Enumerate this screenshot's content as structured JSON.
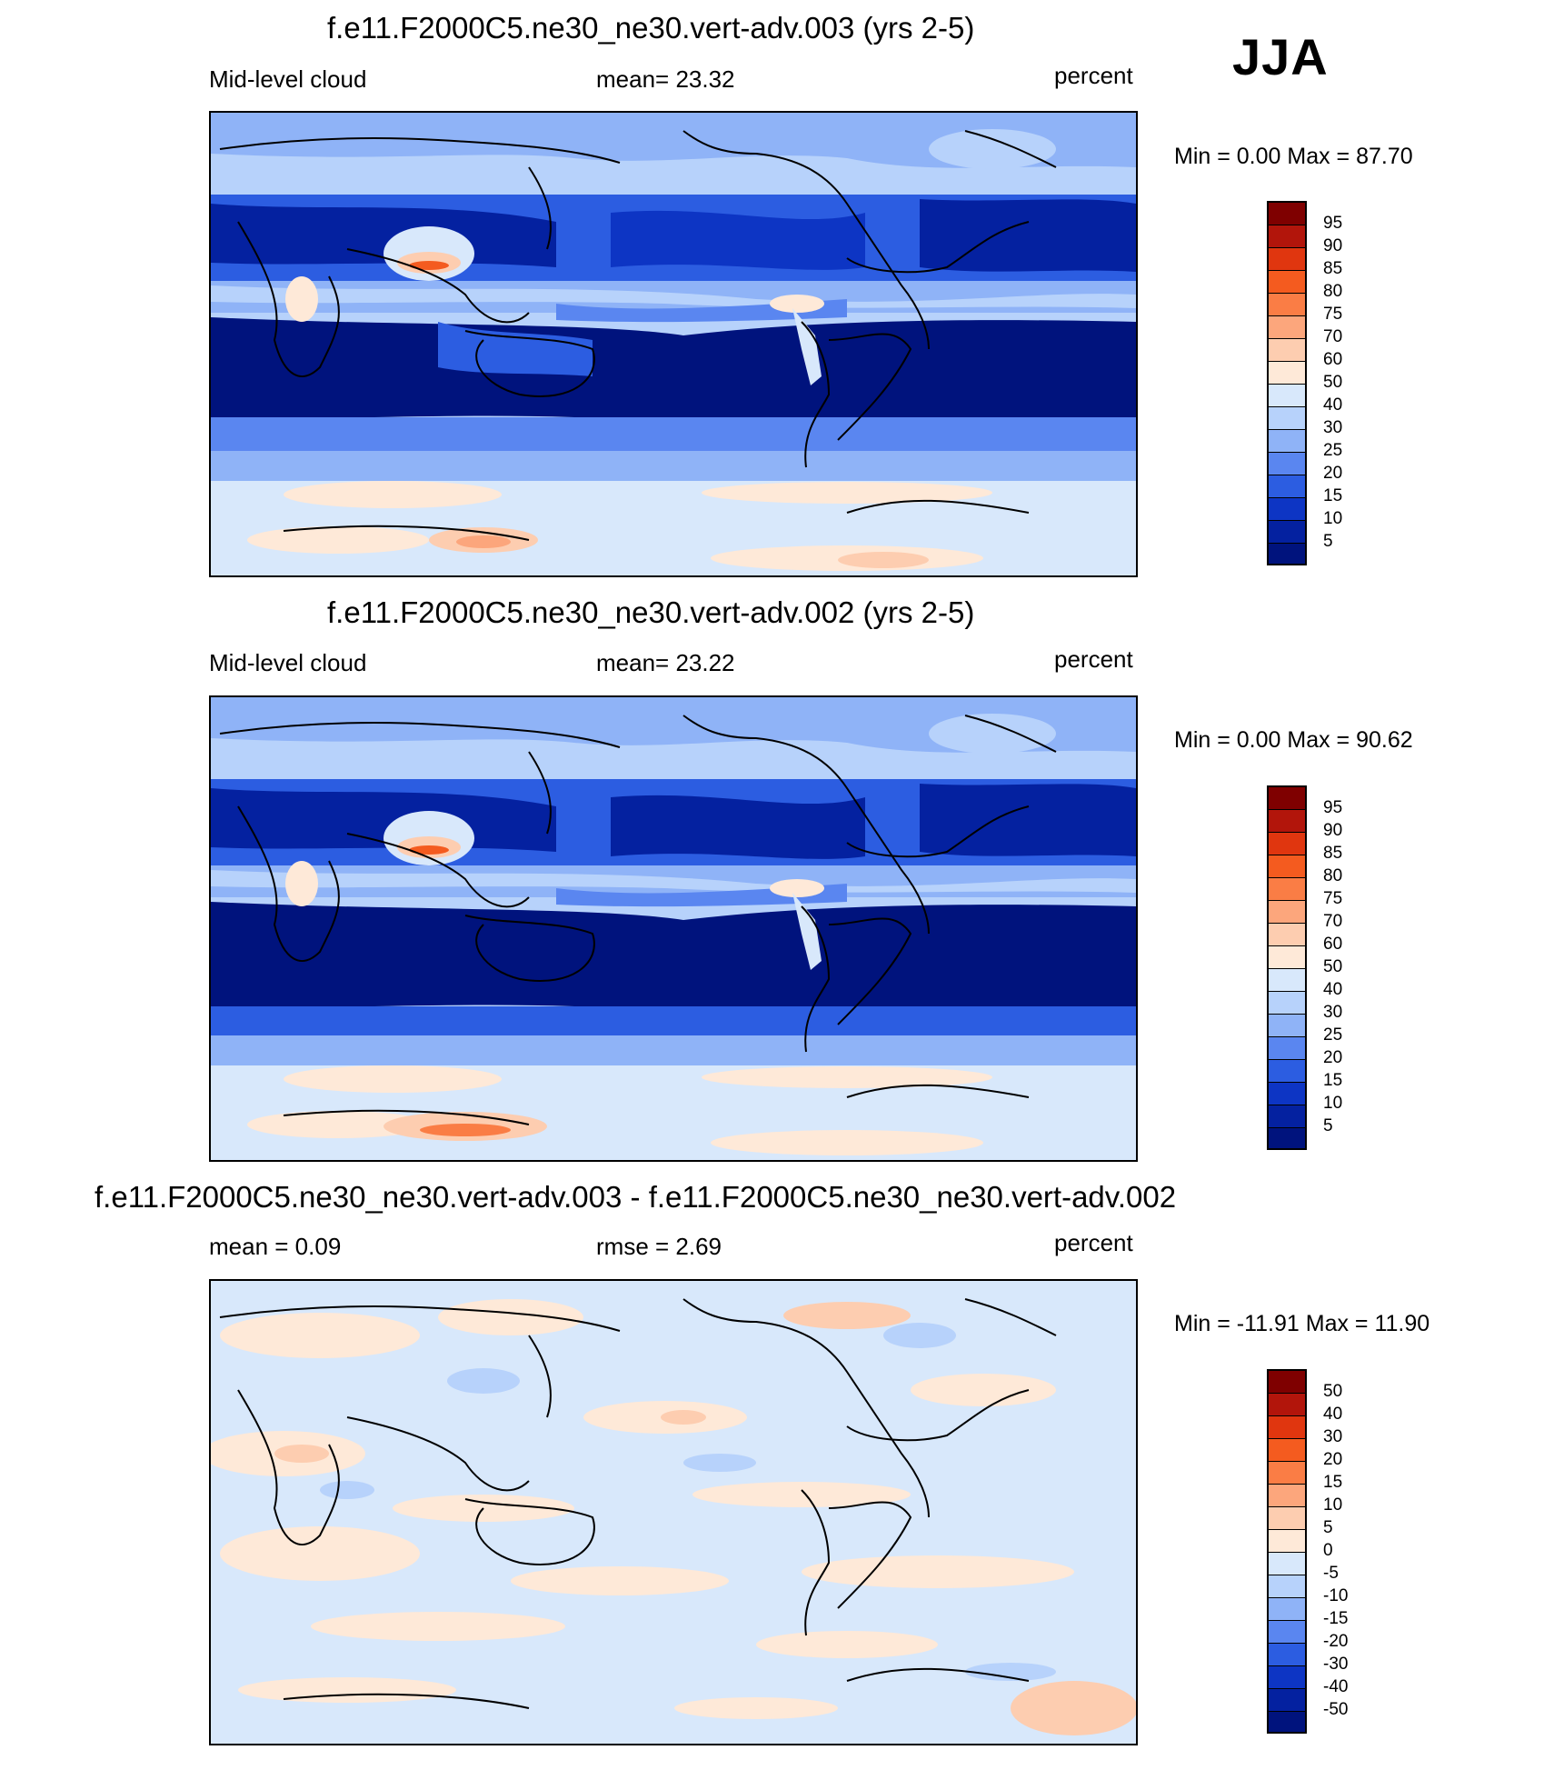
{
  "season": "JJA",
  "panels": [
    {
      "title": "f.e11.F2000C5.ne30_ne30.vert-adv.003 (yrs 2-5)",
      "left_label": "Mid-level cloud",
      "center_label": "mean=  23.32",
      "right_label": "percent",
      "minmax": "Min =   0.00 Max =  87.70"
    },
    {
      "title": "f.e11.F2000C5.ne30_ne30.vert-adv.002 (yrs 2-5)",
      "left_label": "Mid-level cloud",
      "center_label": "mean=  23.22",
      "right_label": "percent",
      "minmax": "Min =   0.00 Max =  90.62"
    },
    {
      "title": "f.e11.F2000C5.ne30_ne30.vert-adv.003 - f.e11.F2000C5.ne30_ne30.vert-adv.002",
      "left_label": "mean =   0.09",
      "center_label": "rmse =   2.69",
      "right_label": "percent",
      "minmax": "Min = -11.91 Max =  11.90"
    }
  ],
  "colorbars": {
    "cloud": {
      "labels": [
        "95",
        "90",
        "85",
        "80",
        "75",
        "70",
        "60",
        "50",
        "40",
        "30",
        "25",
        "20",
        "15",
        "10",
        "5"
      ],
      "colors": [
        "#7f0000",
        "#b2150b",
        "#e0360f",
        "#f45b1f",
        "#fa7d45",
        "#fca67c",
        "#fdcdb0",
        "#fee9d8",
        "#d8e8fb",
        "#b7d2fb",
        "#8fb3f7",
        "#5a86f0",
        "#2c5de1",
        "#0d35c4",
        "#0421a0",
        "#00137d"
      ]
    },
    "diff": {
      "labels": [
        "50",
        "40",
        "30",
        "20",
        "15",
        "10",
        "5",
        "0",
        "-5",
        "-10",
        "-15",
        "-20",
        "-30",
        "-40",
        "-50"
      ],
      "colors": [
        "#7f0000",
        "#b2150b",
        "#e0360f",
        "#f45b1f",
        "#fa7d45",
        "#fca67c",
        "#fdcdb0",
        "#fee9d8",
        "#d8e8fb",
        "#b7d2fb",
        "#8fb3f7",
        "#5a86f0",
        "#2c5de1",
        "#0d35c4",
        "#0421a0",
        "#00137d"
      ]
    }
  }
}
